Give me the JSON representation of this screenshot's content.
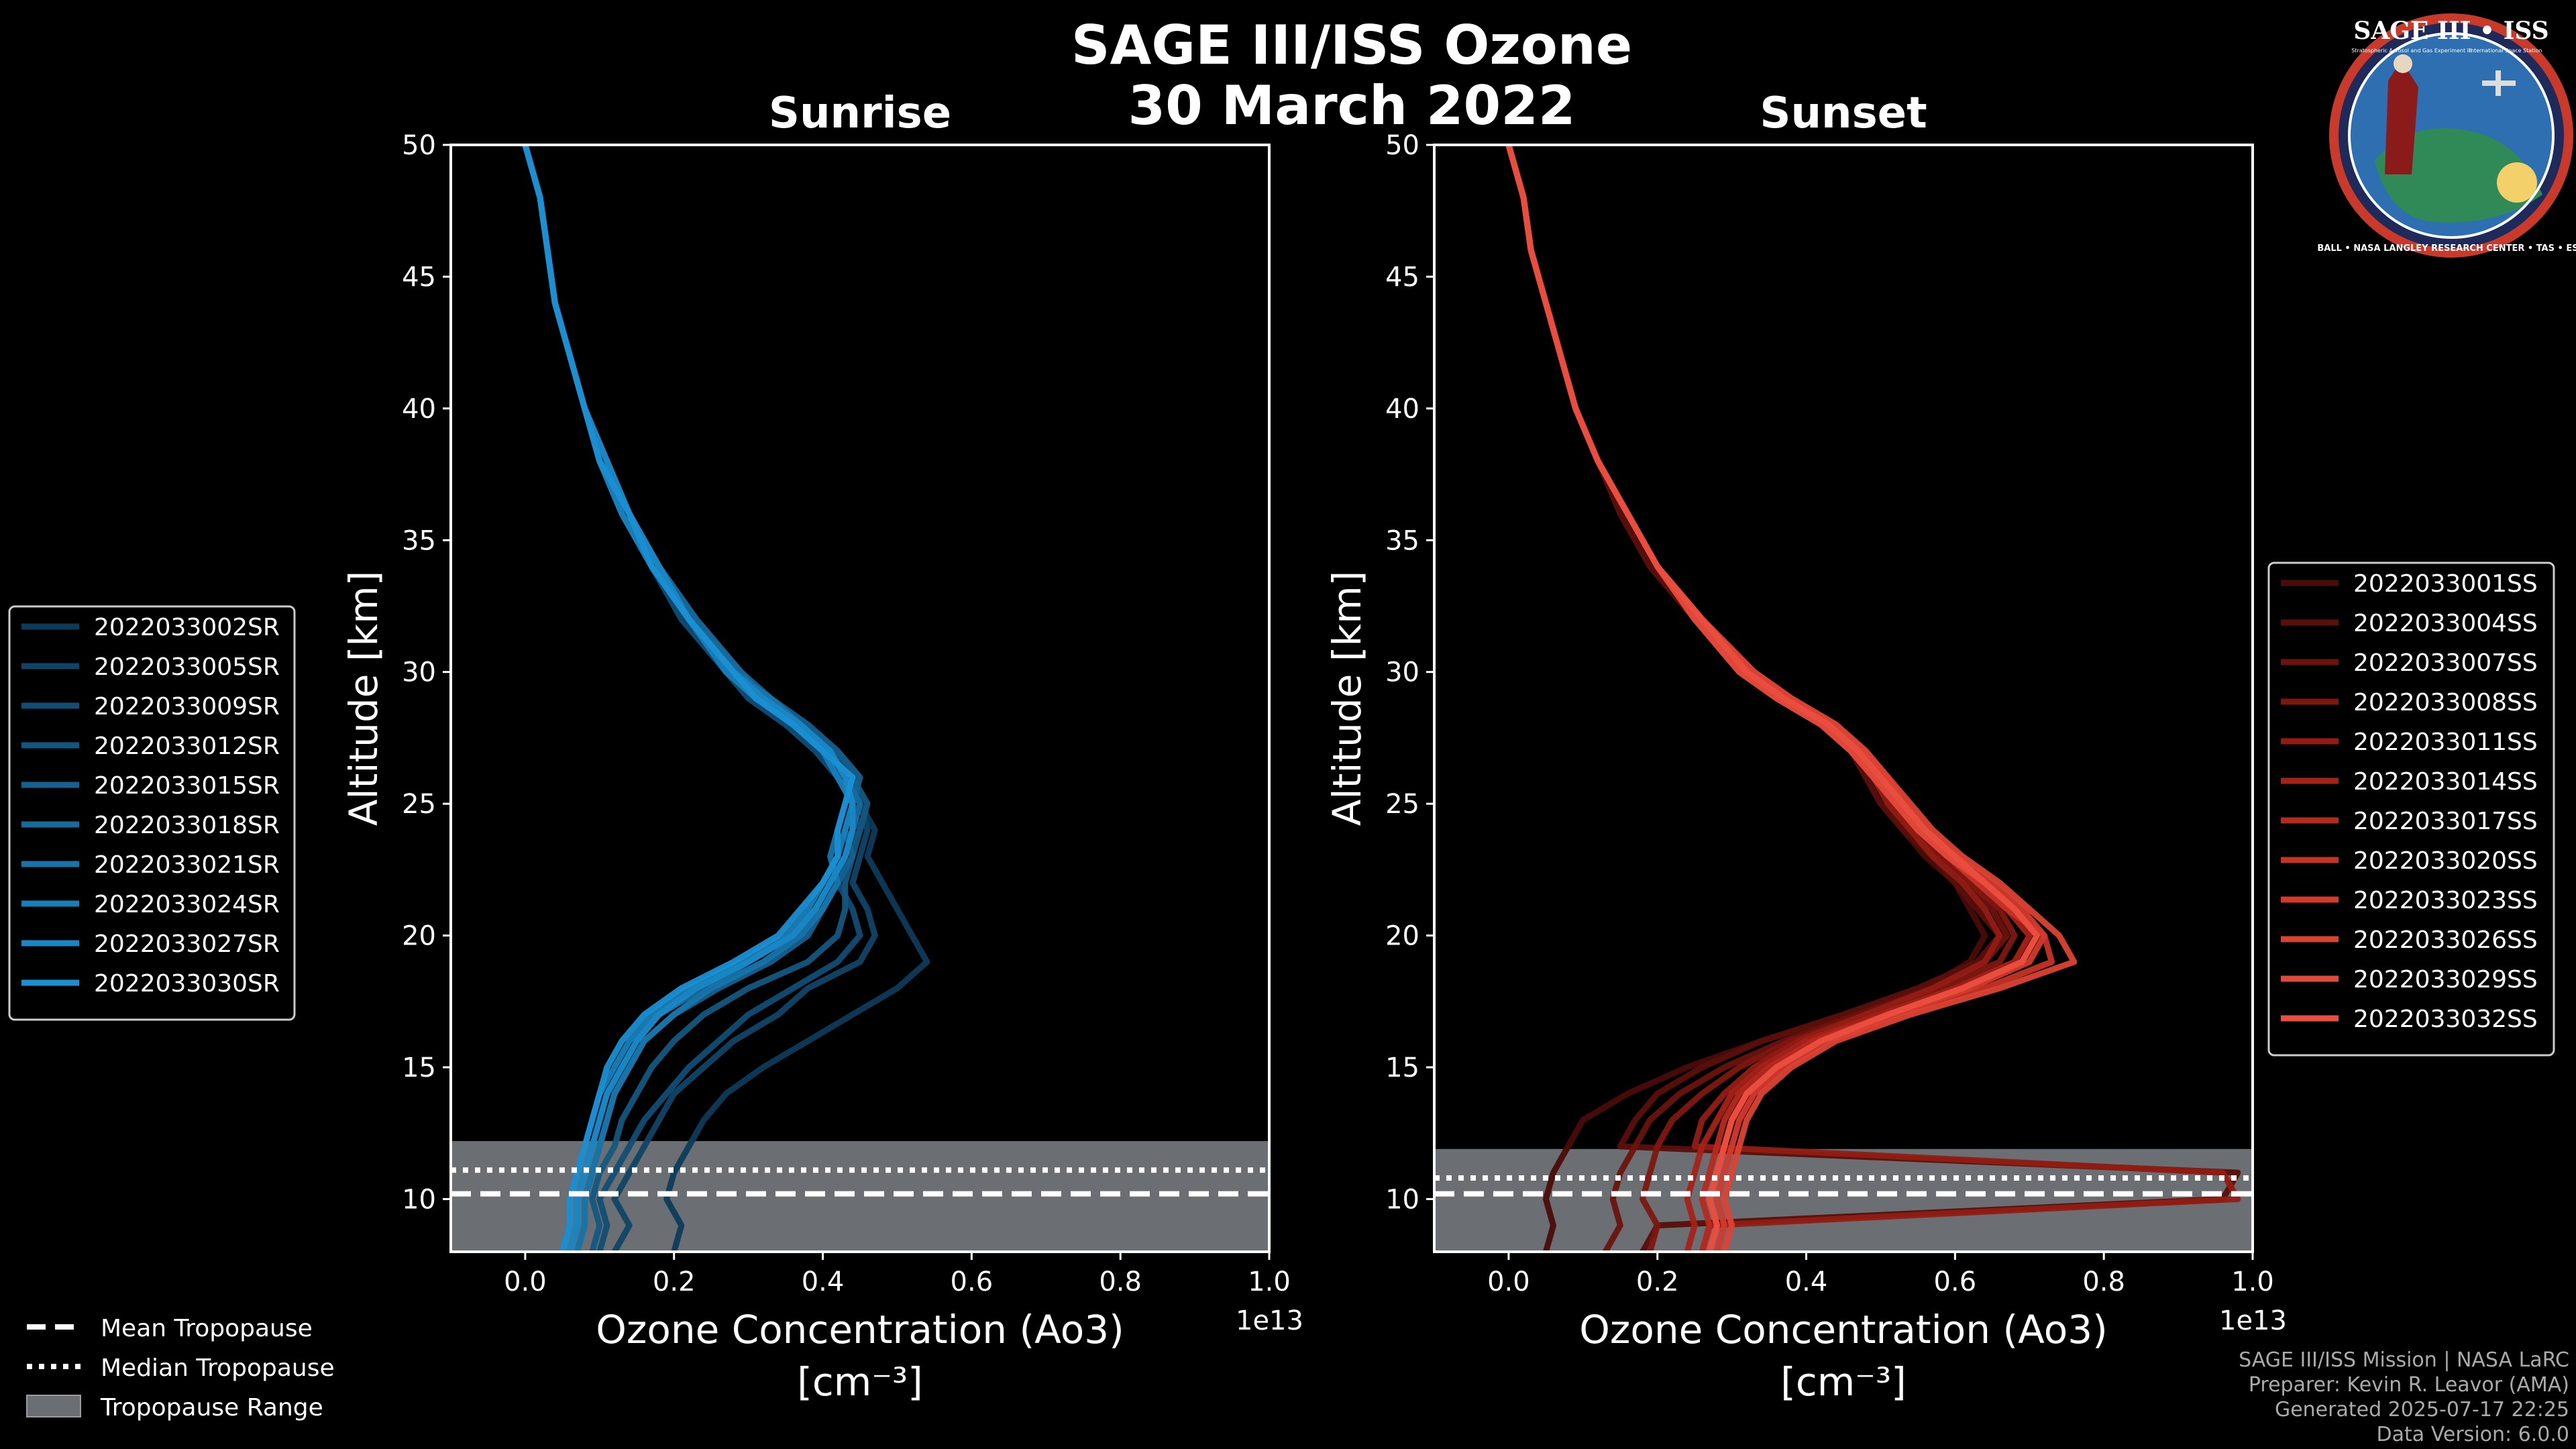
{
  "colors": {
    "background": "#000000",
    "sunrise": "#1a8fd3",
    "sunset": "#ea4e3e",
    "tropopause_fill": "#6b6e72",
    "frame": "#ffffff"
  },
  "figure": {
    "title": "SAGE III/ISS Ozone",
    "date": "30 March 2022",
    "logo": {
      "top": "SAGE III • ISS",
      "sub_left": "Stratospheric Aerosol and Gas Experiment III",
      "sub_right": "International Space Station",
      "ring": "BALL • NASA LANGLEY RESEARCH CENTER • TAS • ESA"
    },
    "footer": [
      "SAGE III/ISS Mission | NASA LaRC",
      "Preparer: Kevin R. Leavor (AMA)",
      "Generated 2025-07-17 22:25",
      "Data Version: 6.0.0"
    ],
    "tropopause_legend": [
      {
        "label": "Mean Tropopause",
        "style": "dashed"
      },
      {
        "label": "Median Tropopause",
        "style": "dotted"
      },
      {
        "label": "Tropopause Range",
        "style": "patch"
      }
    ]
  },
  "chart_data": [
    {
      "type": "line",
      "title": "Sunrise",
      "xlabel": "Ozone Concentration (Ao3)",
      "xunit": "[cm⁻³]",
      "xscale_label": "1e13",
      "ylabel": "Altitude [km]",
      "xlim": [
        -0.1,
        1.0
      ],
      "ylim": [
        8,
        50
      ],
      "xticks": [
        0.0,
        0.2,
        0.4,
        0.6,
        0.8,
        1.0
      ],
      "xtick_labels": [
        "0.0",
        "0.2",
        "0.4",
        "0.6",
        "0.8",
        "1.0"
      ],
      "yticks": [
        10,
        15,
        20,
        25,
        30,
        35,
        40,
        45,
        50
      ],
      "ytick_labels": [
        "10",
        "15",
        "20",
        "25",
        "30",
        "35",
        "40",
        "45",
        "50"
      ],
      "altitudes": [
        50,
        48,
        46,
        44,
        42,
        40,
        38,
        36,
        34,
        32,
        30,
        29,
        28,
        27,
        26,
        25,
        24,
        23,
        22,
        21,
        20,
        19,
        18,
        17,
        16,
        15,
        14,
        13,
        12,
        11,
        10,
        9,
        8
      ],
      "tropopause": {
        "mean": 10.2,
        "median": 11.1,
        "range": [
          8.0,
          12.2
        ]
      },
      "legend_position": "left",
      "series": [
        {
          "name": "2022033002SR",
          "color": "#0d3b5a",
          "values": [
            0.0,
            0.02,
            0.03,
            0.04,
            0.06,
            0.08,
            0.11,
            0.14,
            0.18,
            0.22,
            0.28,
            0.31,
            0.36,
            0.4,
            0.43,
            0.45,
            0.47,
            0.46,
            0.48,
            0.5,
            0.52,
            0.54,
            0.5,
            0.44,
            0.38,
            0.32,
            0.27,
            0.24,
            0.22,
            0.2,
            0.19,
            0.21,
            0.2
          ]
        },
        {
          "name": "2022033005SR",
          "color": "#0f4467",
          "values": [
            0.0,
            0.02,
            0.03,
            0.04,
            0.06,
            0.08,
            0.1,
            0.14,
            0.17,
            0.22,
            0.28,
            0.33,
            0.37,
            0.4,
            0.44,
            0.45,
            0.46,
            0.45,
            0.44,
            0.46,
            0.47,
            0.45,
            0.38,
            0.34,
            0.28,
            0.24,
            0.2,
            0.18,
            0.16,
            0.14,
            0.12,
            0.14,
            0.12
          ]
        },
        {
          "name": "2022033009SR",
          "color": "#114d74",
          "values": [
            0.0,
            0.02,
            0.03,
            0.04,
            0.06,
            0.08,
            0.1,
            0.13,
            0.17,
            0.21,
            0.27,
            0.3,
            0.35,
            0.39,
            0.42,
            0.44,
            0.45,
            0.43,
            0.42,
            0.44,
            0.45,
            0.42,
            0.36,
            0.3,
            0.26,
            0.22,
            0.19,
            0.16,
            0.14,
            0.12,
            0.1,
            0.11,
            0.1
          ]
        },
        {
          "name": "2022033012SR",
          "color": "#135781",
          "values": [
            0.0,
            0.02,
            0.03,
            0.04,
            0.06,
            0.08,
            0.11,
            0.14,
            0.18,
            0.22,
            0.28,
            0.32,
            0.37,
            0.41,
            0.44,
            0.46,
            0.45,
            0.44,
            0.43,
            0.43,
            0.42,
            0.38,
            0.3,
            0.24,
            0.2,
            0.17,
            0.15,
            0.13,
            0.12,
            0.1,
            0.09,
            0.1,
            0.09
          ]
        },
        {
          "name": "2022033015SR",
          "color": "#15618f",
          "values": [
            0.0,
            0.02,
            0.03,
            0.04,
            0.06,
            0.08,
            0.1,
            0.13,
            0.17,
            0.22,
            0.29,
            0.33,
            0.38,
            0.42,
            0.45,
            0.44,
            0.43,
            0.44,
            0.42,
            0.4,
            0.38,
            0.33,
            0.26,
            0.2,
            0.16,
            0.14,
            0.12,
            0.11,
            0.1,
            0.09,
            0.08,
            0.08,
            0.07
          ]
        },
        {
          "name": "2022033018SR",
          "color": "#166b9d",
          "values": [
            0.0,
            0.02,
            0.03,
            0.04,
            0.06,
            0.08,
            0.11,
            0.14,
            0.18,
            0.23,
            0.29,
            0.32,
            0.36,
            0.41,
            0.43,
            0.45,
            0.44,
            0.43,
            0.41,
            0.39,
            0.36,
            0.3,
            0.24,
            0.18,
            0.15,
            0.13,
            0.11,
            0.1,
            0.09,
            0.08,
            0.07,
            0.07,
            0.06
          ]
        },
        {
          "name": "2022033021SR",
          "color": "#1775ab",
          "values": [
            0.0,
            0.02,
            0.03,
            0.04,
            0.06,
            0.08,
            0.1,
            0.14,
            0.17,
            0.22,
            0.28,
            0.33,
            0.37,
            0.4,
            0.44,
            0.43,
            0.42,
            0.41,
            0.42,
            0.4,
            0.37,
            0.32,
            0.25,
            0.2,
            0.16,
            0.14,
            0.12,
            0.11,
            0.1,
            0.09,
            0.08,
            0.08,
            0.07
          ]
        },
        {
          "name": "2022033024SR",
          "color": "#187fb9",
          "values": [
            0.0,
            0.02,
            0.03,
            0.04,
            0.06,
            0.08,
            0.1,
            0.13,
            0.17,
            0.22,
            0.27,
            0.31,
            0.36,
            0.4,
            0.42,
            0.44,
            0.43,
            0.42,
            0.4,
            0.38,
            0.35,
            0.29,
            0.22,
            0.17,
            0.14,
            0.12,
            0.1,
            0.09,
            0.08,
            0.07,
            0.06,
            0.06,
            0.05
          ]
        },
        {
          "name": "2022033027SR",
          "color": "#1987c5",
          "values": [
            0.0,
            0.02,
            0.03,
            0.04,
            0.06,
            0.08,
            0.11,
            0.14,
            0.18,
            0.22,
            0.28,
            0.32,
            0.37,
            0.41,
            0.43,
            0.44,
            0.44,
            0.43,
            0.41,
            0.39,
            0.36,
            0.3,
            0.23,
            0.18,
            0.15,
            0.13,
            0.11,
            0.1,
            0.09,
            0.08,
            0.07,
            0.07,
            0.06
          ]
        },
        {
          "name": "2022033030SR",
          "color": "#1a8fd3",
          "values": [
            0.0,
            0.02,
            0.03,
            0.04,
            0.06,
            0.08,
            0.1,
            0.14,
            0.17,
            0.22,
            0.28,
            0.31,
            0.36,
            0.4,
            0.44,
            0.43,
            0.42,
            0.42,
            0.4,
            0.37,
            0.34,
            0.28,
            0.21,
            0.16,
            0.13,
            0.11,
            0.1,
            0.09,
            0.08,
            0.07,
            0.06,
            0.06,
            0.05
          ]
        }
      ]
    },
    {
      "type": "line",
      "title": "Sunset",
      "xlabel": "Ozone Concentration (Ao3)",
      "xunit": "[cm⁻³]",
      "xscale_label": "1e13",
      "ylabel": "Altitude [km]",
      "xlim": [
        -0.1,
        1.0
      ],
      "ylim": [
        8,
        50
      ],
      "xticks": [
        0.0,
        0.2,
        0.4,
        0.6,
        0.8,
        1.0
      ],
      "xtick_labels": [
        "0.0",
        "0.2",
        "0.4",
        "0.6",
        "0.8",
        "1.0"
      ],
      "yticks": [
        10,
        15,
        20,
        25,
        30,
        35,
        40,
        45,
        50
      ],
      "ytick_labels": [
        "10",
        "15",
        "20",
        "25",
        "30",
        "35",
        "40",
        "45",
        "50"
      ],
      "altitudes": [
        50,
        48,
        46,
        44,
        42,
        40,
        38,
        36,
        34,
        32,
        30,
        29,
        28,
        27,
        26,
        25,
        24,
        23,
        22,
        21,
        20,
        19,
        18,
        17,
        16,
        15,
        14,
        13,
        12,
        11,
        10,
        9,
        8
      ],
      "tropopause": {
        "mean": 10.2,
        "median": 10.8,
        "range": [
          8.0,
          11.9
        ]
      },
      "legend_position": "right",
      "series": [
        {
          "name": "2022033001SS",
          "color": "#4a0c08",
          "values": [
            0.0,
            0.02,
            0.03,
            0.05,
            0.07,
            0.09,
            0.12,
            0.16,
            0.2,
            0.26,
            0.32,
            0.37,
            0.43,
            0.47,
            0.49,
            0.51,
            0.53,
            0.56,
            0.6,
            0.62,
            0.64,
            0.62,
            0.56,
            0.46,
            0.34,
            0.24,
            0.16,
            0.1,
            0.08,
            0.06,
            0.05,
            0.06,
            0.05
          ]
        },
        {
          "name": "2022033004SS",
          "color": "#5a0f0a",
          "values": [
            0.0,
            0.02,
            0.03,
            0.05,
            0.07,
            0.09,
            0.12,
            0.15,
            0.19,
            0.25,
            0.31,
            0.36,
            0.42,
            0.46,
            0.48,
            0.5,
            0.53,
            0.57,
            0.6,
            0.63,
            0.66,
            0.63,
            0.55,
            0.45,
            0.34,
            0.26,
            0.2,
            0.17,
            0.15,
            0.98,
            0.96,
            0.2,
            0.18
          ]
        },
        {
          "name": "2022033007SS",
          "color": "#6c130d",
          "values": [
            0.0,
            0.02,
            0.03,
            0.05,
            0.07,
            0.09,
            0.12,
            0.16,
            0.2,
            0.26,
            0.33,
            0.38,
            0.44,
            0.48,
            0.5,
            0.52,
            0.54,
            0.58,
            0.62,
            0.65,
            0.67,
            0.64,
            0.57,
            0.47,
            0.37,
            0.29,
            0.23,
            0.19,
            0.17,
            0.15,
            0.14,
            0.15,
            0.13
          ]
        },
        {
          "name": "2022033008SS",
          "color": "#7e1710",
          "values": [
            0.0,
            0.02,
            0.03,
            0.05,
            0.07,
            0.09,
            0.12,
            0.16,
            0.2,
            0.26,
            0.32,
            0.37,
            0.43,
            0.47,
            0.49,
            0.52,
            0.55,
            0.58,
            0.62,
            0.66,
            0.68,
            0.66,
            0.58,
            0.48,
            0.38,
            0.31,
            0.26,
            0.22,
            0.2,
            0.19,
            0.18,
            0.2,
            0.19
          ]
        },
        {
          "name": "2022033011SS",
          "color": "#921c14",
          "values": [
            0.0,
            0.02,
            0.03,
            0.05,
            0.07,
            0.09,
            0.12,
            0.16,
            0.2,
            0.25,
            0.31,
            0.36,
            0.42,
            0.46,
            0.49,
            0.51,
            0.54,
            0.57,
            0.61,
            0.64,
            0.66,
            0.64,
            0.57,
            0.48,
            0.39,
            0.33,
            0.29,
            0.26,
            0.25,
            0.96,
            0.98,
            0.27,
            0.26
          ]
        },
        {
          "name": "2022033014SS",
          "color": "#a52218",
          "values": [
            0.0,
            0.02,
            0.03,
            0.05,
            0.07,
            0.09,
            0.12,
            0.16,
            0.2,
            0.26,
            0.32,
            0.37,
            0.43,
            0.47,
            0.5,
            0.53,
            0.56,
            0.59,
            0.63,
            0.67,
            0.7,
            0.68,
            0.6,
            0.5,
            0.4,
            0.34,
            0.3,
            0.28,
            0.26,
            0.25,
            0.24,
            0.25,
            0.24
          ]
        },
        {
          "name": "2022033017SS",
          "color": "#b6291e",
          "values": [
            0.0,
            0.02,
            0.03,
            0.05,
            0.07,
            0.09,
            0.12,
            0.16,
            0.2,
            0.26,
            0.33,
            0.38,
            0.44,
            0.48,
            0.51,
            0.53,
            0.56,
            0.6,
            0.64,
            0.68,
            0.71,
            0.69,
            0.61,
            0.51,
            0.41,
            0.35,
            0.31,
            0.29,
            0.28,
            0.27,
            0.26,
            0.27,
            0.26
          ]
        },
        {
          "name": "2022033020SS",
          "color": "#c53226",
          "values": [
            0.0,
            0.02,
            0.03,
            0.05,
            0.07,
            0.09,
            0.12,
            0.16,
            0.2,
            0.25,
            0.31,
            0.36,
            0.42,
            0.46,
            0.49,
            0.52,
            0.55,
            0.59,
            0.63,
            0.67,
            0.72,
            0.73,
            0.64,
            0.52,
            0.42,
            0.36,
            0.32,
            0.3,
            0.29,
            0.28,
            0.27,
            0.28,
            0.27
          ]
        },
        {
          "name": "2022033023SS",
          "color": "#d23a2d",
          "values": [
            0.0,
            0.02,
            0.03,
            0.05,
            0.07,
            0.09,
            0.12,
            0.16,
            0.2,
            0.26,
            0.32,
            0.37,
            0.43,
            0.47,
            0.5,
            0.53,
            0.56,
            0.6,
            0.65,
            0.69,
            0.72,
            0.7,
            0.62,
            0.52,
            0.43,
            0.37,
            0.33,
            0.31,
            0.3,
            0.29,
            0.28,
            0.29,
            0.28
          ]
        },
        {
          "name": "2022033026SS",
          "color": "#dc4234",
          "values": [
            0.0,
            0.02,
            0.03,
            0.05,
            0.07,
            0.09,
            0.12,
            0.16,
            0.2,
            0.26,
            0.33,
            0.38,
            0.44,
            0.48,
            0.51,
            0.54,
            0.57,
            0.61,
            0.66,
            0.7,
            0.74,
            0.76,
            0.66,
            0.54,
            0.44,
            0.38,
            0.34,
            0.32,
            0.31,
            0.3,
            0.29,
            0.3,
            0.29
          ]
        },
        {
          "name": "2022033029SS",
          "color": "#e3493a",
          "values": [
            0.0,
            0.02,
            0.03,
            0.05,
            0.07,
            0.09,
            0.12,
            0.16,
            0.2,
            0.25,
            0.31,
            0.36,
            0.42,
            0.46,
            0.49,
            0.52,
            0.55,
            0.59,
            0.64,
            0.68,
            0.71,
            0.69,
            0.61,
            0.51,
            0.42,
            0.36,
            0.32,
            0.3,
            0.29,
            0.28,
            0.27,
            0.28,
            0.27
          ]
        },
        {
          "name": "2022033032SS",
          "color": "#ea4e3e",
          "values": [
            0.0,
            0.02,
            0.03,
            0.05,
            0.07,
            0.09,
            0.12,
            0.16,
            0.2,
            0.26,
            0.32,
            0.37,
            0.43,
            0.47,
            0.5,
            0.53,
            0.56,
            0.6,
            0.64,
            0.68,
            0.71,
            0.69,
            0.61,
            0.51,
            0.42,
            0.36,
            0.32,
            0.3,
            0.29,
            0.28,
            0.27,
            0.28,
            0.27
          ]
        }
      ]
    }
  ]
}
